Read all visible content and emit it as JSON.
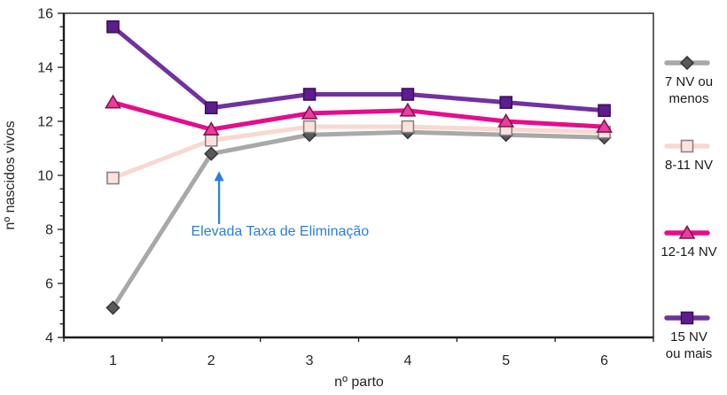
{
  "chart_data": {
    "type": "line",
    "title": "",
    "xlabel": "nº parto",
    "ylabel": "nº nascidos vivos",
    "x": [
      "1",
      "2",
      "3",
      "4",
      "5",
      "6"
    ],
    "ylim": [
      4,
      16
    ],
    "ytick_step": 2,
    "yminor_step": 0.5,
    "grid": false,
    "legend_position": "right",
    "background": "#ffffff",
    "axis_color": "#1c1c1c",
    "text_color": "#262626",
    "series": [
      {
        "name": "7 NV ou menos",
        "legend_label": "7 NV ou\nmenos",
        "values": [
          5.1,
          10.8,
          11.5,
          11.6,
          11.5,
          11.4
        ],
        "color": "#a8a8a8",
        "marker": "diamond",
        "marker_fill": "#595959",
        "marker_stroke": "#3a3a3a"
      },
      {
        "name": "8-11 NV",
        "legend_label": "8-11 NV",
        "values": [
          9.9,
          11.3,
          11.8,
          11.8,
          11.7,
          11.6
        ],
        "color": "#f9d8d0",
        "marker": "square",
        "marker_fill": "#fbe3dc",
        "marker_stroke": "#858585"
      },
      {
        "name": "12-14 NV",
        "legend_label": "12-14 NV",
        "values": [
          12.7,
          11.7,
          12.3,
          12.4,
          12.0,
          11.8
        ],
        "color": "#e60c8d",
        "marker": "triangle",
        "marker_fill": "#e83e9c",
        "marker_stroke": "#84134e"
      },
      {
        "name": "15 NV ou mais",
        "legend_label": "15 NV\nou mais",
        "values": [
          15.5,
          12.5,
          13.0,
          13.0,
          12.7,
          12.4
        ],
        "color": "#7131a1",
        "marker": "square",
        "marker_fill": "#5c1d8d",
        "marker_stroke": "#3a1160"
      }
    ],
    "annotation": {
      "text": "Elevada Taxa de Eliminação",
      "color": "#2b7de0",
      "arrow": {
        "x": 2.08,
        "y_from": 8.2,
        "y_to": 10.15
      },
      "text_pos": {
        "x": 2.7,
        "y": 7.85
      }
    }
  }
}
